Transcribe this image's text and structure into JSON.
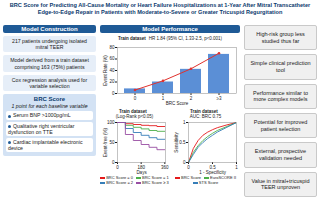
{
  "title": "BRC Score for Predicting All-Cause Mortality or Heart Failure Hospitalizations at 1-Year After Mitral Transcatheter Edge-to-Edge Repair in Patients with Moderate-to-Severe or Greater Tricuspid Regurgitation",
  "construction": {
    "header": "Model Construction",
    "steps": [
      "217 patients undergoing isolated mitral TEER",
      "Model derived from a train dataset comprising 163 (75%) patients",
      "Cox regression analysis used for variable selection"
    ],
    "score": {
      "title": "BRC Score",
      "subtitle": "1 point for each baseline variable",
      "variables": [
        "Serum BNP >1000pg/mL",
        "Qualitative right ventricular dysfunction on TTE",
        "Cardiac implantable electronic device"
      ]
    }
  },
  "performance_header": "Model Performance",
  "chart_data": [
    {
      "type": "bar",
      "title": "Train dataset",
      "annotation": "HR 1.84 (95% CI, 1.33-2.5, p<0.001)",
      "x_label": "BRC Score",
      "y_label": "Event Rate (%)",
      "categories": [
        "0",
        "1",
        "2",
        "≥3"
      ],
      "series": [
        {
          "type": "bar",
          "color": "#5b8fd6",
          "values": [
            8,
            20,
            42,
            68
          ]
        },
        {
          "type": "line",
          "color": "#e0312d",
          "marker": "circle",
          "values": [
            6,
            22,
            43,
            70
          ]
        }
      ],
      "ylim": [
        0,
        80
      ],
      "yticks": [
        0,
        20,
        40,
        60,
        80
      ]
    },
    {
      "type": "line",
      "line_style": "step",
      "title": "Train dataset",
      "subtitle": "(Log-Rank p<0.05)",
      "x_label": "Days",
      "y_label": "Event-free (%)",
      "x": [
        0,
        60,
        120,
        180,
        240,
        300,
        365
      ],
      "series": [
        {
          "name": "BRC Score = 0",
          "color": "#e41a1c",
          "values": [
            100,
            97,
            95,
            93,
            92,
            90,
            90
          ]
        },
        {
          "name": "BRC Score = 1",
          "color": "#4daf4a",
          "values": [
            100,
            93,
            88,
            84,
            80,
            78,
            77
          ]
        },
        {
          "name": "BRC Score = 2",
          "color": "#377eb8",
          "values": [
            100,
            85,
            75,
            68,
            62,
            58,
            55
          ]
        },
        {
          "name": "BRC Score ≥ 3",
          "color": "#984ea3",
          "values": [
            100,
            70,
            55,
            45,
            38,
            32,
            30
          ]
        }
      ],
      "xlim": [
        0,
        365
      ],
      "xticks": [
        0,
        180,
        360
      ],
      "ylim": [
        0,
        100
      ],
      "yticks": [
        0,
        50,
        100
      ],
      "legend": "bottom"
    },
    {
      "type": "line",
      "title": "Train dataset",
      "subtitle": "AUC: BRC 0.75",
      "x_label": "1 - Specificity",
      "y_label": "Sensitivity",
      "x": [
        0,
        0.1,
        0.2,
        0.3,
        0.4,
        0.5,
        0.6,
        0.8,
        1
      ],
      "series": [
        {
          "name": "BRC Score",
          "color": "#e41a1c",
          "values": [
            0,
            0.35,
            0.55,
            0.68,
            0.76,
            0.82,
            0.87,
            0.94,
            1
          ]
        },
        {
          "name": "EuroSCORE II",
          "color": "#4daf4a",
          "values": [
            0,
            0.25,
            0.42,
            0.55,
            0.65,
            0.73,
            0.8,
            0.9,
            1
          ]
        },
        {
          "name": "STS Score",
          "color": "#377eb8",
          "values": [
            0,
            0.2,
            0.38,
            0.5,
            0.6,
            0.68,
            0.76,
            0.88,
            1
          ]
        }
      ],
      "xlim": [
        0,
        1
      ],
      "xticks": [
        0,
        0.5,
        1
      ],
      "ylim": [
        0,
        1
      ],
      "yticks": [
        0,
        0.5,
        1
      ],
      "legend": "bottom"
    }
  ],
  "messages": [
    "High-risk group less studied thus far",
    "Simple clinical prediction tool",
    "Performance similar to more complex models",
    "Potential for improved patient selection",
    "External, prospective validation needed",
    "Value in mitral+tricuspid TEER unproven"
  ]
}
